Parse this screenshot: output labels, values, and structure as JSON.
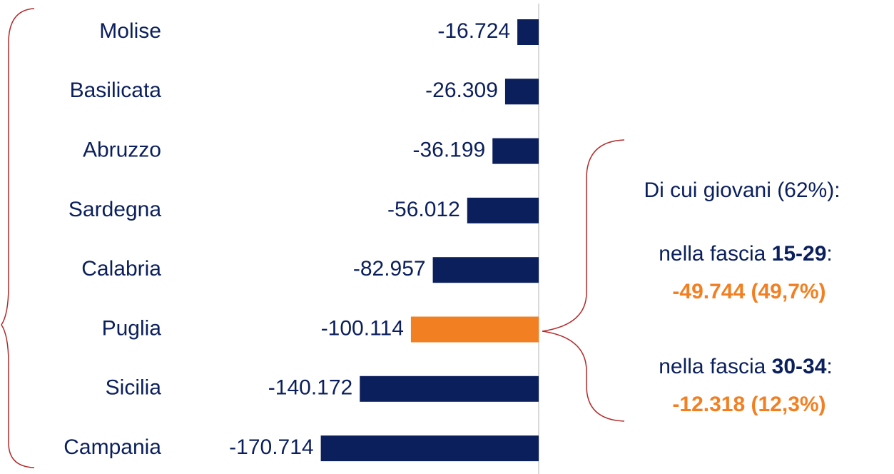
{
  "chart_data": {
    "type": "bar",
    "orientation": "horizontal",
    "categories": [
      "Molise",
      "Basilicata",
      "Abruzzo",
      "Sardegna",
      "Calabria",
      "Puglia",
      "Sicilia",
      "Campania"
    ],
    "values": [
      -16724,
      -26309,
      -36199,
      -56012,
      -82957,
      -100114,
      -140172,
      -170714
    ],
    "value_labels": [
      "-16.724",
      "-26.309",
      "-36.199",
      "-56.012",
      "-82.957",
      "-100.114",
      "-140.172",
      "-170.714"
    ],
    "colors": [
      "#0b1f5c",
      "#0b1f5c",
      "#0b1f5c",
      "#0b1f5c",
      "#0b1f5c",
      "#f28022",
      "#0b1f5c",
      "#0b1f5c"
    ],
    "xlim": [
      -180000,
      0
    ],
    "annotation": {
      "title": "Di cui giovani (62%):",
      "items": [
        {
          "prefix": "nella fascia ",
          "range": "15-29",
          "suffix": ":",
          "value": "-49.744 (49,7%)"
        },
        {
          "prefix": "nella fascia ",
          "range": "30-34",
          "suffix": ":",
          "value": "-12.318 (12,3%)"
        }
      ],
      "highlight_color": "#f28022"
    }
  }
}
